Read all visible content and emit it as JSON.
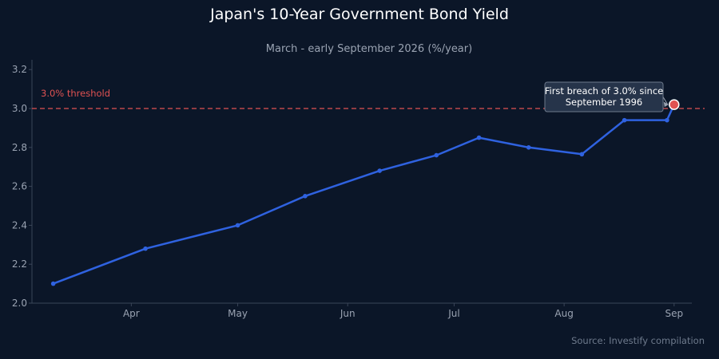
{
  "chart_data": {
    "type": "line",
    "title": "Japan's 10-Year Government Bond Yield",
    "subtitle": "March - early September 2026 (%/year)",
    "xlabel": "",
    "ylabel": "",
    "x": [
      "2026-03-10",
      "2026-04-05",
      "2026-05-01",
      "2026-05-20",
      "2026-06-10",
      "2026-06-26",
      "2026-07-08",
      "2026-07-22",
      "2026-08-06",
      "2026-08-18",
      "2026-08-30",
      "2026-09-01"
    ],
    "series": [
      {
        "values": [
          2.1,
          2.28,
          2.4,
          2.55,
          2.68,
          2.76,
          2.85,
          2.8,
          2.765,
          2.94,
          2.94,
          3.02
        ]
      }
    ],
    "x_ticks": [
      {
        "date": "2026-04-01",
        "label": "Apr"
      },
      {
        "date": "2026-05-01",
        "label": "May"
      },
      {
        "date": "2026-06-01",
        "label": "Jun"
      },
      {
        "date": "2026-07-01",
        "label": "Jul"
      },
      {
        "date": "2026-08-01",
        "label": "Aug"
      },
      {
        "date": "2026-09-01",
        "label": "Sep"
      }
    ],
    "x_range": [
      "2026-03-04",
      "2026-09-06"
    ],
    "ylim": [
      2.0,
      3.25
    ],
    "y_ticks": [
      2.0,
      2.2,
      2.4,
      2.6,
      2.8,
      3.0,
      3.2
    ],
    "grid": false,
    "threshold": {
      "value": 3.0,
      "label": "3.0% threshold",
      "color": "#e05252"
    },
    "annotation": {
      "text_lines": [
        "First breach of 3.0% since",
        "September 1996"
      ],
      "date": "2026-09-01",
      "value": 3.02
    },
    "source": "Source: Investify compilation",
    "colors": {
      "background": "#0b1628",
      "line": "#2f62e0",
      "highlight": "#e05252",
      "text": "#ffffff",
      "muted": "#9aa3b2",
      "axis": "#3a4558",
      "annotation_bg": "#26344a"
    }
  }
}
